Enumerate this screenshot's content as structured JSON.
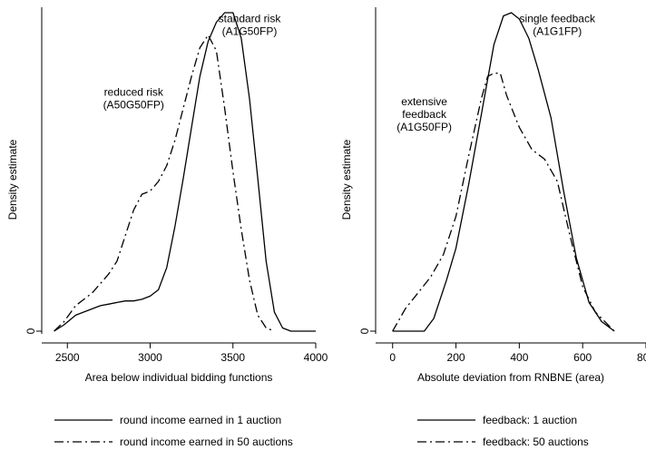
{
  "chart_data": [
    {
      "type": "line",
      "xlabel": "Area below individual bidding functions",
      "ylabel": "Density estimate",
      "xlim": [
        2400,
        4000
      ],
      "x_ticks": [
        "2500",
        "3000",
        "3500",
        "4000"
      ],
      "x_tick_values": [
        2500,
        3000,
        3500,
        4000
      ],
      "y_ticks": [
        "0"
      ],
      "y_tick_values": [
        0
      ],
      "ylim": [
        0,
        1
      ],
      "annotations": [
        {
          "lines": [
            "standard risk",
            "(A1G50FP)"
          ],
          "x": 3600,
          "y": 0.97
        },
        {
          "lines": [
            "reduced risk",
            "(A50G50FP)"
          ],
          "x": 2900,
          "y": 0.74
        }
      ],
      "series": [
        {
          "name": "round income earned in 1 auction",
          "style": "solid",
          "x": [
            2420,
            2480,
            2550,
            2600,
            2650,
            2700,
            2750,
            2800,
            2850,
            2900,
            2950,
            3000,
            3050,
            3100,
            3150,
            3200,
            3250,
            3300,
            3350,
            3400,
            3450,
            3500,
            3550,
            3600,
            3650,
            3700,
            3750,
            3800,
            3850,
            3900,
            3950,
            4000
          ],
          "y": [
            0.0,
            0.02,
            0.05,
            0.06,
            0.07,
            0.08,
            0.085,
            0.09,
            0.095,
            0.095,
            0.1,
            0.11,
            0.13,
            0.2,
            0.33,
            0.48,
            0.64,
            0.8,
            0.91,
            0.97,
            1.0,
            1.0,
            0.92,
            0.73,
            0.48,
            0.22,
            0.06,
            0.01,
            0.0,
            0.0,
            0.0,
            0.0
          ]
        },
        {
          "name": "round income earned in 50 auctions",
          "style": "dashdot",
          "x": [
            2420,
            2480,
            2550,
            2600,
            2650,
            2700,
            2750,
            2800,
            2850,
            2900,
            2950,
            3000,
            3050,
            3100,
            3150,
            3200,
            3250,
            3300,
            3350,
            3400,
            3450,
            3500,
            3550,
            3600,
            3650,
            3700,
            3750
          ],
          "y": [
            0.0,
            0.03,
            0.08,
            0.1,
            0.12,
            0.15,
            0.18,
            0.22,
            0.3,
            0.38,
            0.43,
            0.44,
            0.47,
            0.52,
            0.6,
            0.7,
            0.8,
            0.89,
            0.93,
            0.88,
            0.7,
            0.5,
            0.32,
            0.16,
            0.05,
            0.01,
            0.0
          ]
        }
      ]
    },
    {
      "type": "line",
      "xlabel": "Absolute deviation from RNBNE (area)",
      "ylabel": "Density estimate",
      "xlim": [
        -25,
        800
      ],
      "x_ticks": [
        "0",
        "200",
        "400",
        "600",
        "800"
      ],
      "x_tick_values": [
        0,
        200,
        400,
        600,
        800
      ],
      "y_ticks": [
        "0"
      ],
      "y_tick_values": [
        0
      ],
      "ylim": [
        0,
        1
      ],
      "annotations": [
        {
          "lines": [
            "single feedback",
            "(A1G1FP)"
          ],
          "x": 520,
          "y": 0.97
        },
        {
          "lines": [
            "extensive",
            "feedback",
            "(A1G50FP)"
          ],
          "x": 100,
          "y": 0.71
        }
      ],
      "series": [
        {
          "name": "feedback: 1 auction",
          "style": "solid",
          "x": [
            0,
            50,
            100,
            130,
            170,
            200,
            240,
            280,
            320,
            350,
            375,
            400,
            430,
            460,
            500,
            540,
            580,
            620,
            660,
            700
          ],
          "y": [
            0.0,
            0.0,
            0.0,
            0.04,
            0.16,
            0.26,
            0.46,
            0.68,
            0.9,
            0.99,
            1.0,
            0.98,
            0.92,
            0.82,
            0.67,
            0.44,
            0.23,
            0.09,
            0.03,
            0.0
          ]
        },
        {
          "name": "feedback: 50 auctions",
          "style": "dashdot",
          "x": [
            0,
            40,
            80,
            120,
            160,
            200,
            240,
            280,
            300,
            320,
            340,
            360,
            400,
            440,
            480,
            520,
            560,
            600,
            640,
            680,
            700
          ],
          "y": [
            0.0,
            0.07,
            0.12,
            0.17,
            0.24,
            0.36,
            0.55,
            0.73,
            0.8,
            0.81,
            0.81,
            0.74,
            0.64,
            0.57,
            0.54,
            0.47,
            0.3,
            0.14,
            0.06,
            0.02,
            0.0
          ]
        }
      ]
    }
  ],
  "legends": [
    {
      "items": [
        {
          "label": "round income earned in 1 auction",
          "style": "solid"
        },
        {
          "label": "round income earned in 50 auctions",
          "style": "dashdot"
        }
      ]
    },
    {
      "items": [
        {
          "label": "feedback: 1 auction",
          "style": "solid"
        },
        {
          "label": "feedback: 50 auctions",
          "style": "dashdot"
        }
      ]
    }
  ]
}
